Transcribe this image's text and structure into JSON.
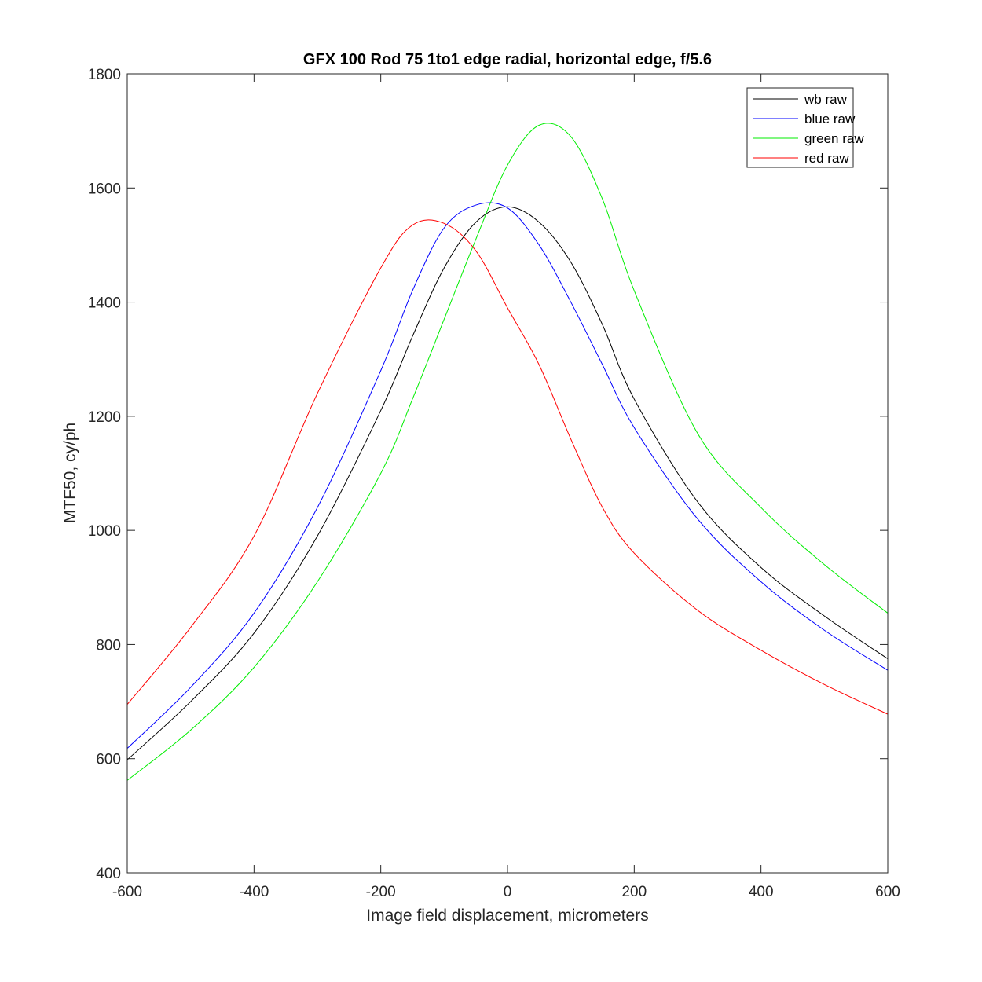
{
  "chart_data": {
    "type": "line",
    "title": "GFX 100 Rod 75 1to1 edge  radial, horizontal edge, f/5.6",
    "xlabel": "Image field displacement, micrometers",
    "ylabel": "MTF50, cy/ph",
    "xlim": [
      -600,
      600
    ],
    "ylim": [
      400,
      1800
    ],
    "xticks": [
      "-600",
      "-400",
      "-200",
      "0",
      "200",
      "400",
      "600"
    ],
    "yticks": [
      "400",
      "600",
      "800",
      "1000",
      "1200",
      "1400",
      "1600",
      "1800"
    ],
    "grid": false,
    "legend_position": "top-right",
    "x": [
      -600,
      -500,
      -400,
      -300,
      -200,
      -150,
      -100,
      -50,
      0,
      50,
      100,
      150,
      200,
      300,
      400,
      500,
      600
    ],
    "series": [
      {
        "name": "wb raw",
        "color": "#000000",
        "values": [
          598,
          700,
          820,
          990,
          1210,
          1340,
          1460,
          1540,
          1567,
          1540,
          1470,
          1360,
          1230,
          1050,
          935,
          850,
          775
        ]
      },
      {
        "name": "blue raw",
        "color": "#0000ff",
        "values": [
          618,
          725,
          855,
          1040,
          1280,
          1420,
          1530,
          1570,
          1565,
          1500,
          1400,
          1290,
          1180,
          1020,
          910,
          825,
          755
        ]
      },
      {
        "name": "green raw",
        "color": "#00ee00",
        "values": [
          562,
          650,
          760,
          910,
          1100,
          1230,
          1370,
          1510,
          1640,
          1710,
          1690,
          1580,
          1420,
          1170,
          1040,
          940,
          855
        ]
      },
      {
        "name": "red raw",
        "color": "#ff0000",
        "values": [
          695,
          830,
          990,
          1240,
          1460,
          1535,
          1538,
          1490,
          1390,
          1290,
          1160,
          1040,
          960,
          860,
          790,
          730,
          678
        ]
      }
    ]
  }
}
